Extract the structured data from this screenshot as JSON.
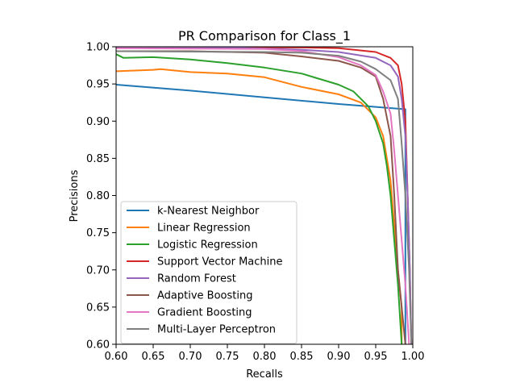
{
  "chart_data": {
    "type": "line",
    "title": "PR Comparison for Class_1",
    "xlabel": "Recalls",
    "ylabel": "Precisions",
    "xlim": [
      0.6,
      1.0
    ],
    "ylim": [
      0.6,
      1.0
    ],
    "xticks": [
      "0.60",
      "0.65",
      "0.70",
      "0.75",
      "0.80",
      "0.85",
      "0.90",
      "0.95",
      "1.00"
    ],
    "yticks": [
      "0.60",
      "0.65",
      "0.70",
      "0.75",
      "0.80",
      "0.85",
      "0.90",
      "0.95",
      "1.00"
    ],
    "legend_position": "lower-left",
    "grid": false,
    "series": [
      {
        "name": "k-Nearest Neighbor",
        "color": "#1f77b4",
        "points": [
          [
            0.6,
            0.949
          ],
          [
            0.7,
            0.941
          ],
          [
            0.8,
            0.932
          ],
          [
            0.9,
            0.923
          ],
          [
            0.99,
            0.916
          ],
          [
            0.99,
            0.6
          ]
        ]
      },
      {
        "name": "Linear Regression",
        "color": "#ff7f0e",
        "points": [
          [
            0.6,
            0.967
          ],
          [
            0.65,
            0.969
          ],
          [
            0.66,
            0.97
          ],
          [
            0.7,
            0.966
          ],
          [
            0.75,
            0.964
          ],
          [
            0.8,
            0.959
          ],
          [
            0.85,
            0.946
          ],
          [
            0.9,
            0.936
          ],
          [
            0.93,
            0.925
          ],
          [
            0.95,
            0.905
          ],
          [
            0.96,
            0.88
          ],
          [
            0.97,
            0.82
          ],
          [
            0.975,
            0.76
          ],
          [
            0.98,
            0.7
          ],
          [
            0.985,
            0.65
          ],
          [
            0.985,
            0.6
          ]
        ]
      },
      {
        "name": "Logistic Regression",
        "color": "#2ca02c",
        "points": [
          [
            0.6,
            0.99
          ],
          [
            0.61,
            0.985
          ],
          [
            0.65,
            0.986
          ],
          [
            0.7,
            0.983
          ],
          [
            0.75,
            0.978
          ],
          [
            0.8,
            0.972
          ],
          [
            0.85,
            0.964
          ],
          [
            0.88,
            0.955
          ],
          [
            0.9,
            0.949
          ],
          [
            0.92,
            0.94
          ],
          [
            0.94,
            0.92
          ],
          [
            0.95,
            0.9
          ],
          [
            0.96,
            0.87
          ],
          [
            0.965,
            0.84
          ],
          [
            0.97,
            0.8
          ],
          [
            0.975,
            0.74
          ],
          [
            0.98,
            0.68
          ],
          [
            0.985,
            0.6
          ]
        ]
      },
      {
        "name": "Support Vector Machine",
        "color": "#d62728",
        "points": [
          [
            0.6,
            0.999
          ],
          [
            0.85,
            0.999
          ],
          [
            0.9,
            0.998
          ],
          [
            0.95,
            0.993
          ],
          [
            0.97,
            0.985
          ],
          [
            0.98,
            0.975
          ],
          [
            0.985,
            0.95
          ],
          [
            0.99,
            0.9
          ],
          [
            0.993,
            0.8
          ],
          [
            0.996,
            0.7
          ],
          [
            0.998,
            0.6
          ]
        ]
      },
      {
        "name": "Random Forest",
        "color": "#9467bd",
        "points": [
          [
            0.6,
            0.999
          ],
          [
            0.75,
            0.999
          ],
          [
            0.85,
            0.996
          ],
          [
            0.9,
            0.993
          ],
          [
            0.95,
            0.985
          ],
          [
            0.97,
            0.975
          ],
          [
            0.98,
            0.96
          ],
          [
            0.985,
            0.93
          ],
          [
            0.99,
            0.88
          ],
          [
            0.993,
            0.8
          ],
          [
            0.996,
            0.7
          ],
          [
            0.998,
            0.6
          ]
        ]
      },
      {
        "name": "Adaptive Boosting",
        "color": "#8c564b",
        "points": [
          [
            0.6,
            0.994
          ],
          [
            0.7,
            0.994
          ],
          [
            0.8,
            0.992
          ],
          [
            0.85,
            0.987
          ],
          [
            0.9,
            0.981
          ],
          [
            0.93,
            0.972
          ],
          [
            0.95,
            0.96
          ],
          [
            0.96,
            0.93
          ],
          [
            0.97,
            0.88
          ],
          [
            0.975,
            0.8
          ],
          [
            0.98,
            0.7
          ],
          [
            0.985,
            0.65
          ],
          [
            0.99,
            0.6
          ]
        ]
      },
      {
        "name": "Gradient Boosting",
        "color": "#e377c2",
        "points": [
          [
            0.6,
            0.998
          ],
          [
            0.8,
            0.997
          ],
          [
            0.85,
            0.994
          ],
          [
            0.9,
            0.986
          ],
          [
            0.93,
            0.975
          ],
          [
            0.95,
            0.962
          ],
          [
            0.96,
            0.94
          ],
          [
            0.97,
            0.91
          ],
          [
            0.975,
            0.86
          ],
          [
            0.98,
            0.8
          ],
          [
            0.985,
            0.74
          ],
          [
            0.99,
            0.68
          ],
          [
            0.995,
            0.6
          ]
        ]
      },
      {
        "name": "Multi-Layer Perceptron",
        "color": "#7f7f7f",
        "points": [
          [
            0.6,
            0.994
          ],
          [
            0.8,
            0.993
          ],
          [
            0.85,
            0.992
          ],
          [
            0.9,
            0.988
          ],
          [
            0.93,
            0.98
          ],
          [
            0.95,
            0.97
          ],
          [
            0.97,
            0.955
          ],
          [
            0.98,
            0.93
          ],
          [
            0.985,
            0.87
          ],
          [
            0.99,
            0.8
          ],
          [
            0.995,
            0.7
          ],
          [
            0.998,
            0.6
          ]
        ]
      }
    ]
  }
}
